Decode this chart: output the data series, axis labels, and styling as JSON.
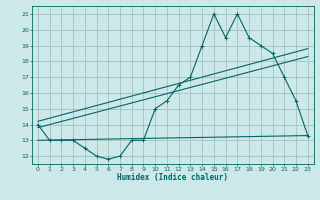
{
  "xlabel": "Humidex (Indice chaleur)",
  "bg_color": "#cce8e8",
  "grid_color": "#99bbbb",
  "line_color": "#006666",
  "xlim": [
    -0.5,
    23.5
  ],
  "ylim": [
    11.5,
    21.5
  ],
  "xticks": [
    0,
    1,
    2,
    3,
    4,
    5,
    6,
    7,
    8,
    9,
    10,
    11,
    12,
    13,
    14,
    15,
    16,
    17,
    18,
    19,
    20,
    21,
    22,
    23
  ],
  "yticks": [
    12,
    13,
    14,
    15,
    16,
    17,
    18,
    19,
    20,
    21
  ],
  "line1_x": [
    0,
    1,
    2,
    3,
    4,
    5,
    6,
    7,
    8,
    9,
    10,
    11,
    12,
    13,
    14,
    15,
    16,
    17,
    18,
    19,
    20,
    21,
    22,
    23
  ],
  "line1_y": [
    14,
    13,
    13,
    13,
    12.5,
    12,
    11.8,
    12,
    13,
    13,
    15,
    15.5,
    16.5,
    17,
    19,
    21,
    19.5,
    21,
    19.5,
    19,
    18.5,
    17,
    15.5,
    13.3
  ],
  "line2_x": [
    0,
    23
  ],
  "line2_y": [
    13.0,
    13.3
  ],
  "line3_x": [
    0,
    23
  ],
  "line3_y": [
    13.8,
    18.3
  ],
  "line4_x": [
    0,
    23
  ],
  "line4_y": [
    14.2,
    18.8
  ]
}
